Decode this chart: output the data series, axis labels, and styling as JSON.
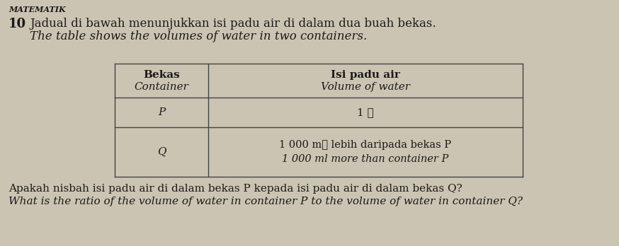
{
  "title_top": "MATEMATIK",
  "question_number": "10",
  "question_malay": "Jadual di bawah menunjukkan isi padu air di dalam dua buah bekas.",
  "question_english": "The table shows the volumes of water in two containers.",
  "col1_header_line1": "Bekas",
  "col1_header_line2": "Container",
  "col2_header_line1": "Isi padu air",
  "col2_header_line2": "Volume of water",
  "row1_col1": "P",
  "row1_col2": "1 ℓ",
  "row2_col1": "Q",
  "row2_col2_line1": "1 000 mℓ lebih daripada bekas P",
  "row2_col2_line2": "1 000 ml more than container P",
  "footer_malay": "Apakah nisbah isi padu air di dalam bekas P kepada isi padu air di dalam bekas Q?",
  "footer_english": "What is the ratio of the volume of water in container P to the volume of water in container Q?",
  "bg_color": "#ccc4b2",
  "text_color": "#1a1a1a",
  "table_bg": "#ccc4b2",
  "line_color": "#444444"
}
